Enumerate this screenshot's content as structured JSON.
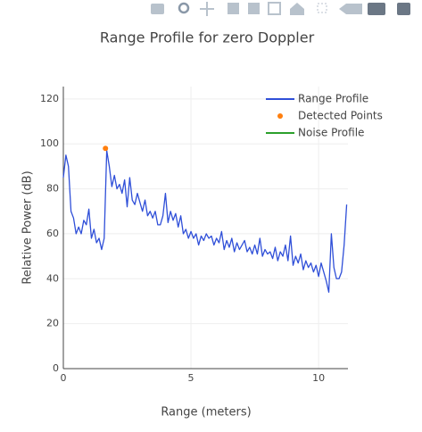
{
  "chart_data": {
    "type": "line",
    "title": "Range Profile for zero Doppler",
    "x_label": "Range (meters)",
    "y_label": "Relative Power (dB)",
    "xlim": [
      0,
      11.15
    ],
    "ylim": [
      0,
      125.5
    ],
    "xticks": [
      0,
      5,
      10
    ],
    "yticks": [
      0,
      20,
      40,
      60,
      80,
      100,
      120
    ],
    "grid": true,
    "legend": "top-right",
    "series": [
      {
        "name": "Range Profile",
        "type": "line",
        "color": "#2f4fd8",
        "x": [
          0.0,
          0.1,
          0.2,
          0.3,
          0.4,
          0.5,
          0.6,
          0.7,
          0.8,
          0.9,
          1.0,
          1.1,
          1.2,
          1.3,
          1.4,
          1.5,
          1.6,
          1.7,
          1.8,
          1.9,
          2.0,
          2.1,
          2.2,
          2.3,
          2.4,
          2.5,
          2.6,
          2.7,
          2.8,
          2.9,
          3.0,
          3.1,
          3.2,
          3.3,
          3.4,
          3.5,
          3.6,
          3.7,
          3.8,
          3.9,
          4.0,
          4.1,
          4.2,
          4.3,
          4.4,
          4.5,
          4.6,
          4.7,
          4.8,
          4.9,
          5.0,
          5.1,
          5.2,
          5.3,
          5.4,
          5.5,
          5.6,
          5.7,
          5.8,
          5.9,
          6.0,
          6.1,
          6.2,
          6.3,
          6.4,
          6.5,
          6.6,
          6.7,
          6.8,
          6.9,
          7.0,
          7.1,
          7.2,
          7.3,
          7.4,
          7.5,
          7.6,
          7.7,
          7.8,
          7.9,
          8.0,
          8.1,
          8.2,
          8.3,
          8.4,
          8.5,
          8.6,
          8.7,
          8.8,
          8.9,
          9.0,
          9.1,
          9.2,
          9.3,
          9.4,
          9.5,
          9.6,
          9.7,
          9.8,
          9.9,
          10.0,
          10.1,
          10.2,
          10.3,
          10.4,
          10.5,
          10.6,
          10.7,
          10.8,
          10.9,
          11.0,
          11.1
        ],
        "values": [
          85,
          95,
          90,
          70,
          67,
          60,
          63,
          60,
          66,
          64,
          71,
          58,
          62,
          56,
          58,
          53,
          58,
          97,
          90,
          81,
          86,
          80,
          82,
          78,
          84,
          72,
          85,
          75,
          73,
          78,
          74,
          70,
          75,
          68,
          70,
          67,
          70,
          64,
          64,
          68,
          78,
          65,
          70,
          66,
          69,
          63,
          68,
          60,
          62,
          58,
          61,
          58,
          60,
          55,
          59,
          57,
          60,
          58,
          59,
          55,
          58,
          56,
          61,
          53,
          57,
          54,
          58,
          52,
          56,
          53,
          55,
          57,
          52,
          54,
          51,
          55,
          51,
          58,
          50,
          53,
          51,
          52,
          49,
          54,
          48,
          52,
          50,
          55,
          48,
          59,
          46,
          50,
          47,
          51,
          44,
          48,
          45,
          47,
          43,
          46,
          41,
          47,
          43,
          39,
          34,
          60,
          45,
          40,
          40,
          43,
          55,
          73
        ]
      },
      {
        "name": "Detected Points",
        "type": "scatter",
        "color": "#ff7f0e",
        "x": [
          1.65
        ],
        "values": [
          98
        ]
      },
      {
        "name": "Noise Profile",
        "type": "line",
        "color": "#2ca02c",
        "x": [],
        "values": []
      }
    ]
  }
}
